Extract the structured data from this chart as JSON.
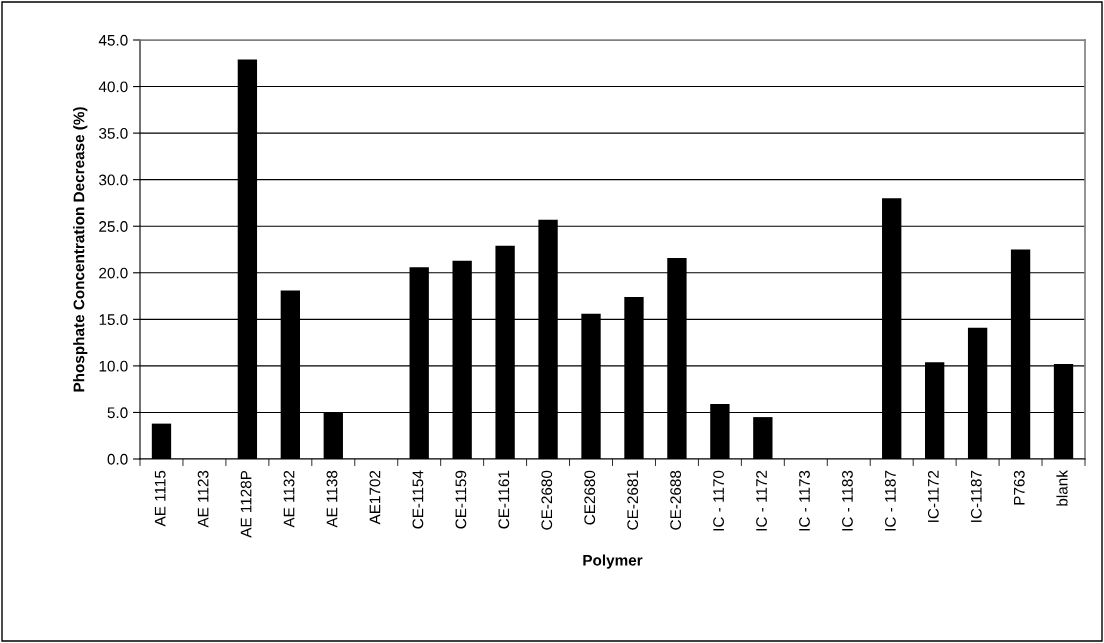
{
  "chart_data": {
    "type": "bar",
    "xlabel": "Polymer",
    "ylabel": "Phosphate Concentration Decrease (%)",
    "categories": [
      "AE 1115",
      "AE 1123",
      "AE 1128P",
      "AE 1132",
      "AE 1138",
      "AE1702",
      "CE-1154",
      "CE-1159",
      "CE-1161",
      "CE-2680",
      "CE2680",
      "CE-2681",
      "CE-2688",
      "IC - 1170",
      "IC - 1172",
      "IC - 1173",
      "IC - 1183",
      "IC - 1187",
      "IC-1172",
      "IC-1187",
      "P763",
      "blank"
    ],
    "values": [
      3.8,
      0,
      42.9,
      18.1,
      5.0,
      0,
      20.6,
      21.3,
      22.9,
      25.7,
      15.6,
      17.4,
      21.6,
      5.9,
      4.5,
      0,
      0,
      28.0,
      10.4,
      14.1,
      22.5,
      10.2
    ],
    "color": "#000000",
    "ylim": [
      0,
      45
    ],
    "yticks": [
      {
        "value": 0,
        "label": "0.0"
      },
      {
        "value": 5,
        "label": "5.0"
      },
      {
        "value": 10,
        "label": "10.0"
      },
      {
        "value": 15,
        "label": "15.0"
      },
      {
        "value": 20,
        "label": "20.0"
      },
      {
        "value": 25,
        "label": "25.0"
      },
      {
        "value": 30,
        "label": "30.0"
      },
      {
        "value": 35,
        "label": "35.0"
      },
      {
        "value": 40,
        "label": "40.0"
      },
      {
        "value": 45,
        "label": "45.0"
      }
    ],
    "grid": "y"
  }
}
